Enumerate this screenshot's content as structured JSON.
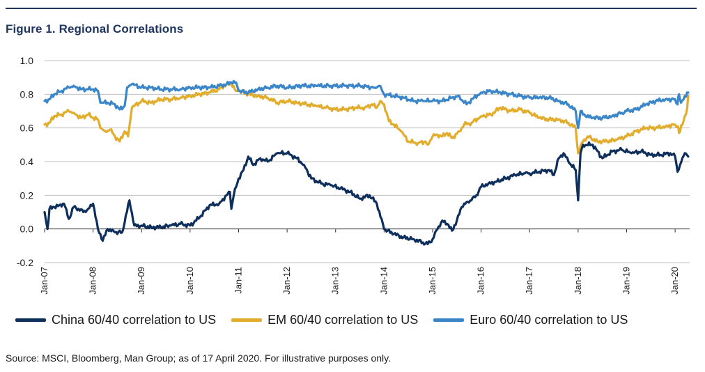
{
  "figure_title": "Figure 1. Regional Correlations",
  "source": "Source: MSCI, Bloomberg, Man Group; as of 17 April 2020. For illustrative purposes only.",
  "colors": {
    "china": "#0e2f5c",
    "em": "#e2ac2c",
    "euro": "#3a86c8",
    "grid": "#bfbfbf",
    "axis": "#333333",
    "rule": "#1e3560"
  },
  "chart_data": {
    "type": "line",
    "title": "Figure 1. Regional Correlations",
    "xlabel": "",
    "ylabel": "",
    "ylim": [
      -0.2,
      1.0
    ],
    "xlim": [
      2007.0,
      2020.3
    ],
    "y_ticks": [
      "-0.2",
      "0.0",
      "0.2",
      "0.4",
      "0.6",
      "0.8",
      "1.0"
    ],
    "y_tick_values": [
      -0.2,
      0.0,
      0.2,
      0.4,
      0.6,
      0.8,
      1.0
    ],
    "x_ticks": [
      "Jan-07",
      "Jan-08",
      "Jan-09",
      "Jan-10",
      "Jan-11",
      "Jan-12",
      "Jan-13",
      "Jan-14",
      "Jan-15",
      "Jan-16",
      "Jan-17",
      "Jan-18",
      "Jan-19",
      "Jan-20"
    ],
    "x_tick_values": [
      2007,
      2008,
      2009,
      2010,
      2011,
      2012,
      2013,
      2014,
      2015,
      2016,
      2017,
      2018,
      2019,
      2020
    ],
    "series": [
      {
        "key": "china",
        "name": "China 60/40 correlation to US",
        "x": [
          2007.0,
          2007.06,
          2007.1,
          2007.2,
          2007.3,
          2007.4,
          2007.5,
          2007.6,
          2007.7,
          2007.8,
          2007.9,
          2008.0,
          2008.1,
          2008.15,
          2008.2,
          2008.3,
          2008.45,
          2008.6,
          2008.75,
          2008.85,
          2009.0,
          2009.2,
          2009.4,
          2009.6,
          2009.8,
          2010.0,
          2010.2,
          2010.4,
          2010.6,
          2010.75,
          2010.82,
          2010.85,
          2010.9,
          2011.0,
          2011.1,
          2011.2,
          2011.3,
          2011.45,
          2011.6,
          2011.8,
          2012.0,
          2012.2,
          2012.35,
          2012.5,
          2012.7,
          2012.9,
          2013.1,
          2013.3,
          2013.5,
          2013.7,
          2013.85,
          2014.0,
          2014.2,
          2014.4,
          2014.6,
          2014.8,
          2014.9,
          2015.0,
          2015.1,
          2015.2,
          2015.3,
          2015.4,
          2015.5,
          2015.6,
          2015.7,
          2015.8,
          2015.9,
          2016.0,
          2016.15,
          2016.3,
          2016.5,
          2016.7,
          2016.9,
          2017.0,
          2017.2,
          2017.4,
          2017.5,
          2017.6,
          2017.7,
          2017.8,
          2017.95,
          2018.0,
          2018.05,
          2018.1,
          2018.3,
          2018.5,
          2018.7,
          2018.9,
          2019.1,
          2019.3,
          2019.5,
          2019.7,
          2019.9,
          2020.0,
          2020.05,
          2020.1,
          2020.2,
          2020.27
        ],
        "values": [
          0.1,
          0.0,
          0.12,
          0.13,
          0.14,
          0.15,
          0.06,
          0.13,
          0.12,
          0.1,
          0.12,
          0.15,
          0.0,
          -0.03,
          -0.07,
          0.0,
          -0.02,
          -0.02,
          0.17,
          0.02,
          0.02,
          0.01,
          0.01,
          0.02,
          0.03,
          0.02,
          0.07,
          0.14,
          0.15,
          0.2,
          0.22,
          0.12,
          0.2,
          0.3,
          0.35,
          0.43,
          0.38,
          0.42,
          0.4,
          0.45,
          0.45,
          0.42,
          0.38,
          0.3,
          0.27,
          0.26,
          0.24,
          0.22,
          0.18,
          0.2,
          0.15,
          0.0,
          -0.03,
          -0.05,
          -0.06,
          -0.08,
          -0.09,
          -0.06,
          0.0,
          0.05,
          0.03,
          -0.01,
          0.05,
          0.13,
          0.16,
          0.17,
          0.2,
          0.25,
          0.27,
          0.28,
          0.3,
          0.32,
          0.33,
          0.33,
          0.34,
          0.35,
          0.32,
          0.42,
          0.45,
          0.4,
          0.35,
          0.17,
          0.45,
          0.5,
          0.5,
          0.42,
          0.46,
          0.47,
          0.45,
          0.46,
          0.44,
          0.44,
          0.45,
          0.43,
          0.34,
          0.38,
          0.45,
          0.43
        ]
      },
      {
        "key": "em",
        "name": "EM 60/40 correlation to US",
        "x": [
          2007.0,
          2007.1,
          2007.2,
          2007.35,
          2007.5,
          2007.6,
          2007.75,
          2007.9,
          2008.0,
          2008.1,
          2008.15,
          2008.25,
          2008.35,
          2008.45,
          2008.55,
          2008.65,
          2008.72,
          2008.8,
          2009.0,
          2009.2,
          2009.4,
          2009.6,
          2009.8,
          2010.0,
          2010.2,
          2010.4,
          2010.6,
          2010.75,
          2010.85,
          2010.95,
          2011.0,
          2011.2,
          2011.4,
          2011.6,
          2011.8,
          2012.0,
          2012.2,
          2012.4,
          2012.6,
          2012.8,
          2013.0,
          2013.2,
          2013.4,
          2013.6,
          2013.75,
          2013.85,
          2013.92,
          2014.0,
          2014.1,
          2014.2,
          2014.35,
          2014.5,
          2014.7,
          2014.85,
          2014.9,
          2015.0,
          2015.1,
          2015.2,
          2015.3,
          2015.4,
          2015.55,
          2015.65,
          2015.8,
          2016.0,
          2016.2,
          2016.4,
          2016.6,
          2016.8,
          2017.0,
          2017.2,
          2017.4,
          2017.6,
          2017.8,
          2017.95,
          2018.0,
          2018.1,
          2018.2,
          2018.4,
          2018.6,
          2018.8,
          2019.0,
          2019.2,
          2019.4,
          2019.6,
          2019.8,
          2020.0,
          2020.05,
          2020.08,
          2020.15,
          2020.25,
          2020.27
        ],
        "values": [
          0.62,
          0.63,
          0.67,
          0.68,
          0.7,
          0.69,
          0.66,
          0.68,
          0.66,
          0.65,
          0.6,
          0.58,
          0.59,
          0.55,
          0.52,
          0.58,
          0.55,
          0.72,
          0.76,
          0.75,
          0.77,
          0.77,
          0.78,
          0.79,
          0.8,
          0.81,
          0.83,
          0.86,
          0.86,
          0.82,
          0.82,
          0.8,
          0.79,
          0.78,
          0.75,
          0.76,
          0.75,
          0.74,
          0.73,
          0.72,
          0.71,
          0.71,
          0.72,
          0.72,
          0.74,
          0.72,
          0.76,
          0.74,
          0.64,
          0.62,
          0.58,
          0.52,
          0.51,
          0.52,
          0.5,
          0.55,
          0.56,
          0.55,
          0.57,
          0.54,
          0.58,
          0.62,
          0.63,
          0.67,
          0.68,
          0.72,
          0.7,
          0.71,
          0.69,
          0.66,
          0.65,
          0.65,
          0.63,
          0.6,
          0.45,
          0.52,
          0.55,
          0.52,
          0.52,
          0.53,
          0.55,
          0.58,
          0.6,
          0.6,
          0.61,
          0.62,
          0.61,
          0.57,
          0.62,
          0.72,
          0.79
        ]
      },
      {
        "key": "euro",
        "name": "Euro 60/40 correlation to US",
        "x": [
          2007.0,
          2007.1,
          2007.2,
          2007.35,
          2007.5,
          2007.6,
          2007.75,
          2007.9,
          2008.0,
          2008.1,
          2008.15,
          2008.3,
          2008.45,
          2008.55,
          2008.65,
          2008.7,
          2008.8,
          2009.0,
          2009.2,
          2009.4,
          2009.6,
          2009.8,
          2010.0,
          2010.2,
          2010.4,
          2010.6,
          2010.75,
          2010.85,
          2010.95,
          2011.0,
          2011.2,
          2011.4,
          2011.6,
          2011.8,
          2012.0,
          2012.3,
          2012.6,
          2012.9,
          2013.2,
          2013.5,
          2013.8,
          2013.9,
          2014.0,
          2014.2,
          2014.4,
          2014.6,
          2014.8,
          2015.0,
          2015.2,
          2015.4,
          2015.55,
          2015.62,
          2015.7,
          2015.85,
          2016.0,
          2016.2,
          2016.4,
          2016.6,
          2016.8,
          2017.0,
          2017.2,
          2017.4,
          2017.6,
          2017.8,
          2017.95,
          2018.0,
          2018.05,
          2018.15,
          2018.3,
          2018.5,
          2018.7,
          2018.9,
          2019.0,
          2019.2,
          2019.4,
          2019.6,
          2019.8,
          2020.0,
          2020.05,
          2020.08,
          2020.12,
          2020.2,
          2020.27
        ],
        "values": [
          0.76,
          0.77,
          0.8,
          0.82,
          0.84,
          0.85,
          0.83,
          0.83,
          0.83,
          0.82,
          0.75,
          0.75,
          0.74,
          0.71,
          0.73,
          0.84,
          0.86,
          0.84,
          0.84,
          0.83,
          0.83,
          0.83,
          0.84,
          0.84,
          0.84,
          0.85,
          0.86,
          0.87,
          0.87,
          0.82,
          0.81,
          0.83,
          0.84,
          0.85,
          0.84,
          0.85,
          0.85,
          0.85,
          0.85,
          0.85,
          0.84,
          0.85,
          0.8,
          0.79,
          0.78,
          0.76,
          0.76,
          0.76,
          0.76,
          0.78,
          0.79,
          0.76,
          0.74,
          0.78,
          0.81,
          0.82,
          0.81,
          0.8,
          0.79,
          0.78,
          0.78,
          0.78,
          0.76,
          0.74,
          0.7,
          0.6,
          0.7,
          0.67,
          0.66,
          0.66,
          0.67,
          0.69,
          0.7,
          0.71,
          0.74,
          0.76,
          0.77,
          0.77,
          0.74,
          0.8,
          0.75,
          0.79,
          0.81
        ]
      }
    ],
    "legend_position": "bottom"
  }
}
